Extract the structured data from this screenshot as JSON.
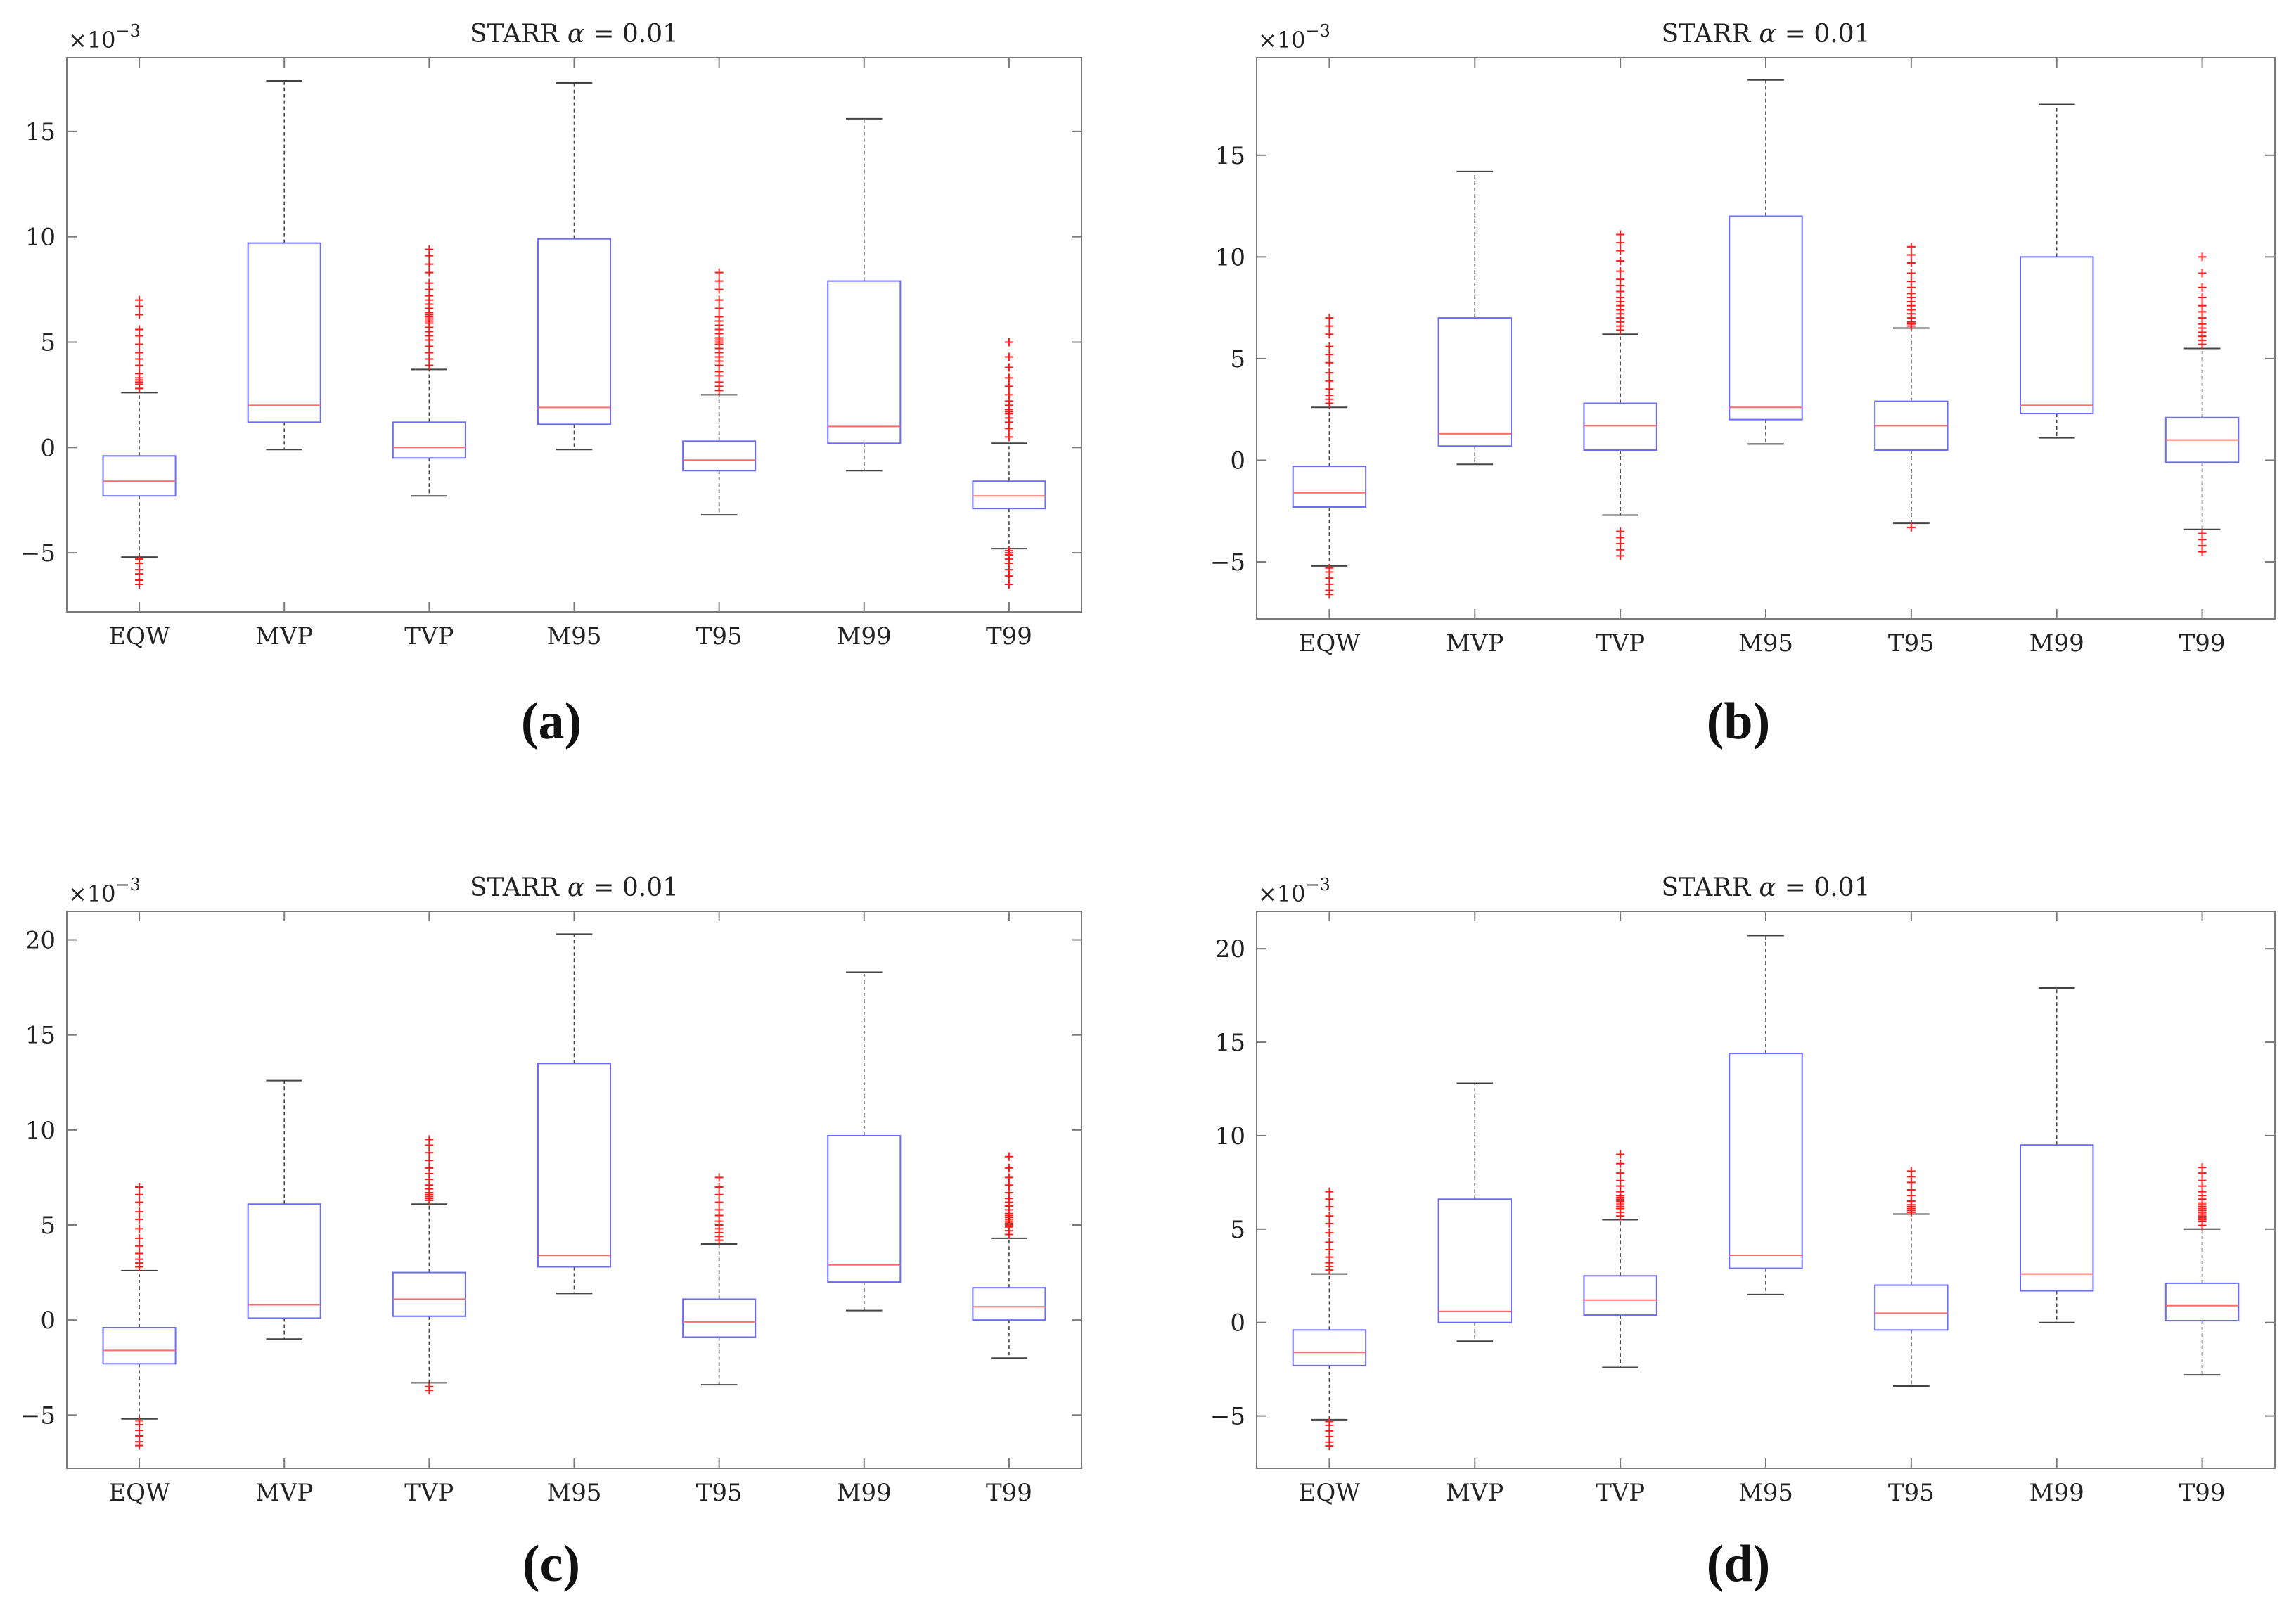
{
  "chart_data": [
    {
      "type": "boxplot",
      "panel_label": "(a)",
      "title_text": "STARR",
      "title_symbol": "α",
      "title_value": "= 0.01",
      "scale_base": "×10",
      "scale_exp": "−3",
      "ylim": [
        -7.8,
        18.5
      ],
      "yticks": [
        -5,
        0,
        5,
        10,
        15
      ],
      "ytick_labels": [
        "−5",
        "0",
        "5",
        "10",
        "15"
      ],
      "categories": [
        "EQW",
        "MVP",
        "TVP",
        "M95",
        "T95",
        "M99",
        "T99"
      ],
      "boxes": [
        {
          "low": -5.2,
          "q1": -2.3,
          "median": -1.6,
          "q3": -0.4,
          "high": 2.6,
          "outliers": [
            2.8,
            3.0,
            3.1,
            3.2,
            3.3,
            3.5,
            3.9,
            4.2,
            4.5,
            4.9,
            5.3,
            5.6,
            6.3,
            6.7,
            7.0,
            -5.3,
            -5.5,
            -5.8,
            -6.0,
            -6.3,
            -6.5
          ]
        },
        {
          "low": -0.1,
          "q1": 1.2,
          "median": 2.0,
          "q3": 9.7,
          "high": 17.4,
          "outliers": []
        },
        {
          "low": -2.3,
          "q1": -0.5,
          "median": 0.0,
          "q3": 1.2,
          "high": 3.7,
          "outliers": [
            3.9,
            4.2,
            4.5,
            4.8,
            5.1,
            5.3,
            5.5,
            5.7,
            5.9,
            6.0,
            6.1,
            6.2,
            6.3,
            6.4,
            6.6,
            6.8,
            7.0,
            7.2,
            7.5,
            7.8,
            8.3,
            8.7,
            9.1,
            9.4
          ]
        },
        {
          "low": -0.1,
          "q1": 1.1,
          "median": 1.9,
          "q3": 9.9,
          "high": 17.3,
          "outliers": []
        },
        {
          "low": -3.2,
          "q1": -1.1,
          "median": -0.6,
          "q3": 0.3,
          "high": 2.5,
          "outliers": [
            2.7,
            2.9,
            3.1,
            3.4,
            3.6,
            3.9,
            4.1,
            4.3,
            4.5,
            4.7,
            4.9,
            5.0,
            5.1,
            5.2,
            5.4,
            5.6,
            5.8,
            6.0,
            6.2,
            6.6,
            7.0,
            7.5,
            7.9,
            8.3
          ]
        },
        {
          "low": -1.1,
          "q1": 0.2,
          "median": 1.0,
          "q3": 7.9,
          "high": 15.6,
          "outliers": []
        },
        {
          "low": -4.8,
          "q1": -2.9,
          "median": -2.3,
          "q3": -1.6,
          "high": 0.2,
          "outliers": [
            0.5,
            0.9,
            1.2,
            1.4,
            1.6,
            1.7,
            1.8,
            2.0,
            2.2,
            2.5,
            2.9,
            3.3,
            3.8,
            4.3,
            5.0,
            -4.9,
            -5.0,
            -5.1,
            -5.3,
            -5.5,
            -5.8,
            -6.1,
            -6.5
          ]
        }
      ]
    },
    {
      "type": "boxplot",
      "panel_label": "(b)",
      "title_text": "STARR",
      "title_symbol": "α",
      "title_value": "= 0.01",
      "scale_base": "×10",
      "scale_exp": "−3",
      "ylim": [
        -7.8,
        19.8
      ],
      "yticks": [
        -5,
        0,
        5,
        10,
        15
      ],
      "ytick_labels": [
        "−5",
        "0",
        "5",
        "10",
        "15"
      ],
      "categories": [
        "EQW",
        "MVP",
        "TVP",
        "M95",
        "T95",
        "M99",
        "T99"
      ],
      "boxes": [
        {
          "low": -5.2,
          "q1": -2.3,
          "median": -1.6,
          "q3": -0.3,
          "high": 2.6,
          "outliers": [
            2.8,
            3.0,
            3.2,
            3.5,
            3.9,
            4.3,
            4.8,
            5.2,
            5.6,
            6.2,
            6.6,
            7.0,
            -5.3,
            -5.5,
            -5.8,
            -6.1,
            -6.4,
            -6.6
          ]
        },
        {
          "low": -0.2,
          "q1": 0.7,
          "median": 1.3,
          "q3": 7.0,
          "high": 14.2,
          "outliers": []
        },
        {
          "low": -2.7,
          "q1": 0.5,
          "median": 1.7,
          "q3": 2.8,
          "high": 6.2,
          "outliers": [
            6.4,
            6.6,
            6.8,
            7.0,
            7.2,
            7.4,
            7.6,
            7.8,
            8.0,
            8.3,
            8.6,
            8.9,
            9.3,
            9.8,
            10.3,
            10.7,
            11.1,
            -3.5,
            -3.8,
            -4.1,
            -4.4,
            -4.7
          ]
        },
        {
          "low": 0.8,
          "q1": 2.0,
          "median": 2.6,
          "q3": 12.0,
          "high": 18.7,
          "outliers": []
        },
        {
          "low": -3.1,
          "q1": 0.5,
          "median": 1.7,
          "q3": 2.9,
          "high": 6.5,
          "outliers": [
            6.6,
            6.7,
            6.8,
            7.0,
            7.2,
            7.4,
            7.6,
            7.8,
            8.0,
            8.2,
            8.5,
            8.8,
            9.2,
            9.7,
            10.1,
            10.5,
            -3.3
          ]
        },
        {
          "low": 1.1,
          "q1": 2.3,
          "median": 2.7,
          "q3": 10.0,
          "high": 17.5,
          "outliers": []
        },
        {
          "low": -3.4,
          "q1": -0.1,
          "median": 1.0,
          "q3": 2.1,
          "high": 5.5,
          "outliers": [
            5.7,
            5.9,
            6.1,
            6.3,
            6.5,
            6.7,
            7.0,
            7.3,
            7.6,
            8.0,
            8.5,
            9.2,
            10.0,
            -3.6,
            -3.9,
            -4.2,
            -4.5
          ]
        }
      ]
    },
    {
      "type": "boxplot",
      "panel_label": "(c)",
      "title_text": "STARR",
      "title_symbol": "α",
      "title_value": "= 0.01",
      "scale_base": "×10",
      "scale_exp": "−3",
      "ylim": [
        -7.8,
        21.5
      ],
      "yticks": [
        -5,
        0,
        5,
        10,
        15,
        20
      ],
      "ytick_labels": [
        "−5",
        "0",
        "5",
        "10",
        "15",
        "20"
      ],
      "categories": [
        "EQW",
        "MVP",
        "TVP",
        "M95",
        "T95",
        "M99",
        "T99"
      ],
      "boxes": [
        {
          "low": -5.2,
          "q1": -2.3,
          "median": -1.6,
          "q3": -0.4,
          "high": 2.6,
          "outliers": [
            2.8,
            3.0,
            3.2,
            3.5,
            3.9,
            4.3,
            4.8,
            5.3,
            5.7,
            6.2,
            6.6,
            7.0,
            -5.3,
            -5.5,
            -5.8,
            -6.1,
            -6.4,
            -6.6
          ]
        },
        {
          "low": -1.0,
          "q1": 0.1,
          "median": 0.8,
          "q3": 6.1,
          "high": 12.6,
          "outliers": []
        },
        {
          "low": -3.3,
          "q1": 0.2,
          "median": 1.1,
          "q3": 2.5,
          "high": 6.1,
          "outliers": [
            6.3,
            6.4,
            6.5,
            6.6,
            6.7,
            6.9,
            7.1,
            7.4,
            7.7,
            8.0,
            8.4,
            8.8,
            9.2,
            9.5,
            -3.5,
            -3.7
          ]
        },
        {
          "low": 1.4,
          "q1": 2.8,
          "median": 3.4,
          "q3": 13.5,
          "high": 20.3,
          "outliers": []
        },
        {
          "low": -3.4,
          "q1": -0.9,
          "median": -0.1,
          "q3": 1.1,
          "high": 4.0,
          "outliers": [
            4.2,
            4.4,
            4.6,
            4.8,
            5.0,
            5.2,
            5.5,
            5.8,
            6.2,
            6.6,
            7.0,
            7.5
          ]
        },
        {
          "low": 0.5,
          "q1": 2.0,
          "median": 2.9,
          "q3": 9.7,
          "high": 18.3,
          "outliers": []
        },
        {
          "low": -2.0,
          "q1": 0.0,
          "median": 0.7,
          "q3": 1.7,
          "high": 4.3,
          "outliers": [
            4.5,
            4.7,
            4.9,
            5.0,
            5.1,
            5.2,
            5.3,
            5.4,
            5.5,
            5.6,
            5.8,
            6.0,
            6.2,
            6.4,
            6.7,
            7.1,
            7.5,
            8.0,
            8.6
          ]
        }
      ]
    },
    {
      "type": "boxplot",
      "panel_label": "(d)",
      "title_text": "STARR",
      "title_symbol": "α",
      "title_value": "= 0.01",
      "scale_base": "×10",
      "scale_exp": "−3",
      "ylim": [
        -7.8,
        22.0
      ],
      "yticks": [
        -5,
        0,
        5,
        10,
        15,
        20
      ],
      "ytick_labels": [
        "−5",
        "0",
        "5",
        "10",
        "15",
        "20"
      ],
      "categories": [
        "EQW",
        "MVP",
        "TVP",
        "M95",
        "T95",
        "M99",
        "T99"
      ],
      "boxes": [
        {
          "low": -5.2,
          "q1": -2.3,
          "median": -1.6,
          "q3": -0.4,
          "high": 2.6,
          "outliers": [
            2.8,
            3.0,
            3.2,
            3.5,
            3.9,
            4.3,
            4.8,
            5.3,
            5.7,
            6.2,
            6.6,
            7.0,
            -5.3,
            -5.5,
            -5.8,
            -6.1,
            -6.4,
            -6.6
          ]
        },
        {
          "low": -1.0,
          "q1": 0.0,
          "median": 0.6,
          "q3": 6.6,
          "high": 12.8,
          "outliers": []
        },
        {
          "low": -2.4,
          "q1": 0.4,
          "median": 1.2,
          "q3": 2.5,
          "high": 5.5,
          "outliers": [
            5.7,
            5.9,
            6.1,
            6.2,
            6.3,
            6.4,
            6.5,
            6.6,
            6.7,
            6.8,
            7.0,
            7.3,
            7.6,
            8.0,
            8.5,
            9.0
          ]
        },
        {
          "low": 1.5,
          "q1": 2.9,
          "median": 3.6,
          "q3": 14.4,
          "high": 20.7,
          "outliers": []
        },
        {
          "low": -3.4,
          "q1": -0.4,
          "median": 0.5,
          "q3": 2.0,
          "high": 5.8,
          "outliers": [
            5.9,
            6.0,
            6.1,
            6.2,
            6.3,
            6.5,
            6.8,
            7.1,
            7.5,
            7.8,
            8.1
          ]
        },
        {
          "low": 0.0,
          "q1": 1.7,
          "median": 2.6,
          "q3": 9.5,
          "high": 17.9,
          "outliers": []
        },
        {
          "low": -2.8,
          "q1": 0.1,
          "median": 0.9,
          "q3": 2.1,
          "high": 5.0,
          "outliers": [
            5.2,
            5.4,
            5.5,
            5.6,
            5.7,
            5.8,
            5.9,
            6.0,
            6.1,
            6.2,
            6.3,
            6.4,
            6.6,
            6.8,
            7.0,
            7.3,
            7.6,
            8.0,
            8.3
          ]
        }
      ]
    }
  ],
  "colors": {
    "box": "#6b6bff",
    "median": "#ff6b6b",
    "outlier": "#ff1a1a",
    "whisker": "#444444",
    "axes": "#7a7a7a"
  }
}
